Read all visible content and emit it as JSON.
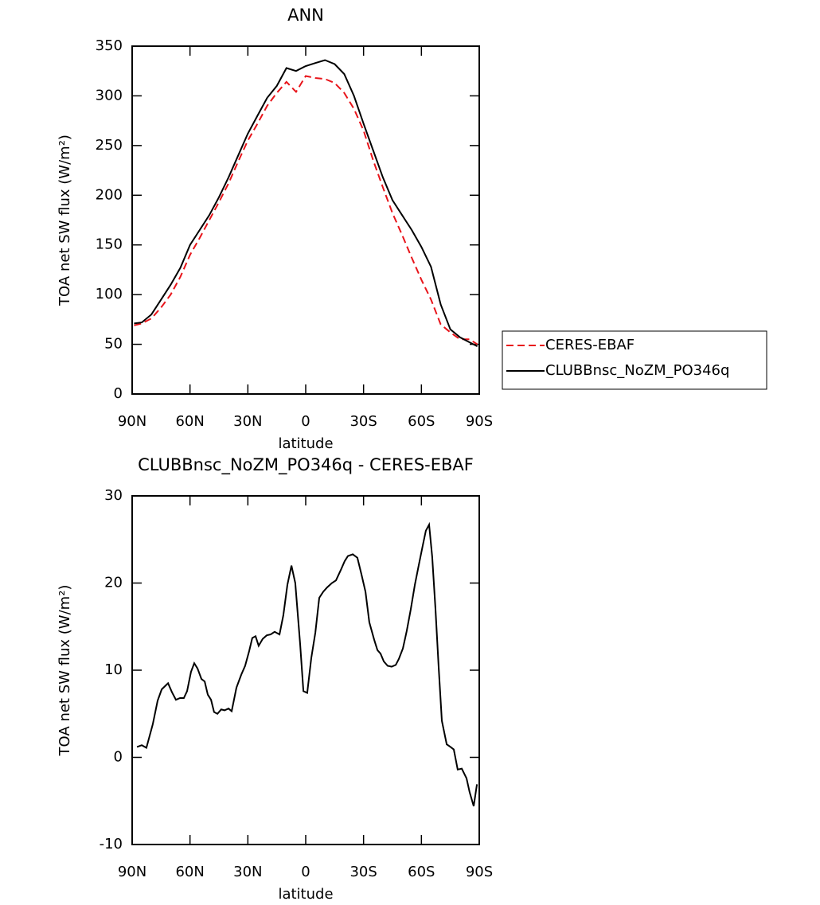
{
  "chart_data": [
    {
      "type": "line",
      "title": "ANN",
      "xlabel": "latitude",
      "ylabel": "TOA net SW flux (W/m²)",
      "x": [
        89,
        85,
        80,
        75,
        70,
        65,
        60,
        55,
        50,
        45,
        40,
        35,
        30,
        25,
        20,
        15,
        10,
        5,
        0,
        -5,
        -10,
        -15,
        -20,
        -25,
        -30,
        -35,
        -40,
        -45,
        -50,
        -55,
        -60,
        -65,
        -70,
        -75,
        -80,
        -85,
        -89
      ],
      "series": [
        {
          "name": "CERES-EBAF",
          "color": "#e8141a",
          "line_style": "dashed",
          "values": [
            69,
            71,
            76,
            87,
            100,
            118,
            140,
            157,
            175,
            193,
            212,
            234,
            255,
            272,
            290,
            303,
            314,
            304,
            320,
            318,
            317,
            313,
            303,
            287,
            265,
            235,
            208,
            182,
            160,
            137,
            115,
            95,
            70,
            62,
            55,
            55,
            50
          ]
        },
        {
          "name": "CLUBBnsc_NoZM_PO346q",
          "color": "#000000",
          "line_style": "solid",
          "values": [
            71,
            72,
            80,
            95,
            110,
            127,
            150,
            165,
            180,
            198,
            218,
            240,
            262,
            280,
            298,
            310,
            328,
            325,
            330,
            333,
            336,
            332,
            322,
            300,
            272,
            245,
            218,
            195,
            180,
            165,
            148,
            128,
            90,
            65,
            57,
            52,
            48
          ]
        }
      ],
      "xlim": [
        90,
        -90
      ],
      "xticks": [
        {
          "value": 90,
          "label": "90N"
        },
        {
          "value": 60,
          "label": "60N"
        },
        {
          "value": 30,
          "label": "30N"
        },
        0,
        {
          "value": -30,
          "label": "30S"
        },
        {
          "value": -60,
          "label": "60S"
        },
        {
          "value": -90,
          "label": "90S"
        }
      ],
      "ylim": [
        0,
        350
      ],
      "yticks": [
        0,
        50,
        100,
        150,
        200,
        250,
        300,
        350
      ],
      "legend": "right"
    },
    {
      "type": "line",
      "title": "CLUBBnsc_NoZM_PO346q - CERES-EBAF",
      "xlabel": "latitude",
      "ylabel": "TOA net SW flux (W/m²)",
      "x": [
        87.5,
        85.0,
        82.6,
        79.3,
        76.8,
        74.7,
        71.4,
        69.4,
        67.3,
        65.2,
        63.2,
        61.5,
        59.5,
        57.8,
        56.1,
        54.1,
        52.4,
        50.8,
        49.1,
        47.5,
        45.8,
        43.8,
        42.1,
        40.0,
        38.4,
        35.9,
        33.4,
        31.4,
        29.3,
        27.7,
        26.0,
        24.4,
        22.3,
        20.2,
        18.2,
        16.1,
        13.6,
        11.6,
        9.5,
        7.4,
        5.4,
        2.9,
        1.2,
        -0.8,
        -2.9,
        -5.0,
        -7.0,
        -9.1,
        -11.1,
        -13.6,
        -15.7,
        -18.2,
        -20.2,
        -21.9,
        -24.4,
        -26.8,
        -28.9,
        -31.0,
        -33.0,
        -35.5,
        -37.2,
        -38.8,
        -40.5,
        -42.5,
        -44.6,
        -46.7,
        -48.3,
        -50.4,
        -52.4,
        -54.5,
        -56.6,
        -58.6,
        -60.7,
        -62.3,
        -64.0,
        -65.6,
        -67.3,
        -68.9,
        -70.6,
        -73.1,
        -75.1,
        -76.8,
        -78.8,
        -80.9,
        -83.4,
        -85.0,
        -87.1,
        -88.8
      ],
      "values": [
        1.2,
        1.4,
        1.1,
        3.8,
        6.5,
        7.8,
        8.5,
        7.5,
        6.6,
        6.8,
        6.8,
        7.6,
        9.8,
        10.8,
        10.2,
        9.0,
        8.7,
        7.2,
        6.6,
        5.2,
        5.0,
        5.5,
        5.4,
        5.6,
        5.3,
        8.0,
        9.5,
        10.5,
        12.2,
        13.7,
        13.9,
        12.8,
        13.6,
        14.0,
        14.1,
        14.4,
        14.1,
        16.3,
        19.8,
        22.0,
        20.0,
        13.0,
        7.6,
        7.4,
        11.4,
        14.3,
        18.3,
        19.0,
        19.5,
        20.0,
        20.3,
        21.5,
        22.5,
        23.1,
        23.3,
        22.9,
        21.0,
        19.0,
        15.5,
        13.5,
        12.3,
        11.9,
        11.0,
        10.5,
        10.4,
        10.6,
        11.3,
        12.5,
        14.5,
        17.0,
        19.8,
        22.0,
        24.3,
        26.0,
        26.7,
        23.0,
        17.0,
        10.5,
        4.2,
        1.5,
        1.2,
        0.9,
        -1.4,
        -1.3,
        -2.4,
        -4.0,
        -5.6,
        -3.1
      ],
      "color": "#000000",
      "xlim": [
        90,
        -90
      ],
      "xticks": [
        {
          "value": 90,
          "label": "90N"
        },
        {
          "value": 60,
          "label": "60N"
        },
        {
          "value": 30,
          "label": "30N"
        },
        0,
        {
          "value": -30,
          "label": "30S"
        },
        {
          "value": -60,
          "label": "60S"
        },
        {
          "value": -90,
          "label": "90S"
        }
      ],
      "ylim": [
        -10,
        30
      ],
      "yticks": [
        -10,
        0,
        10,
        20,
        30
      ]
    }
  ]
}
